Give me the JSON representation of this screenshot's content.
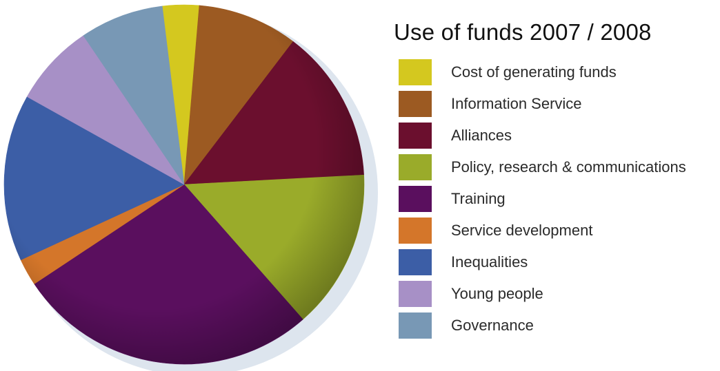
{
  "chart_data": {
    "type": "pie",
    "title": "Use of funds 2007 / 2008",
    "start_angle_deg": 263,
    "categories": [
      "Cost of generating funds",
      "Information Service",
      "Alliances",
      "Policy, research & communications",
      "Training",
      "Service development",
      "Inequalities",
      "Young people",
      "Governance"
    ],
    "values": [
      3.5,
      9.6,
      14.7,
      15.3,
      28.9,
      2.6,
      16.0,
      7.9,
      8.0
    ],
    "colors": [
      "#d4c81f",
      "#9c5a22",
      "#6b0f2e",
      "#9aab2a",
      "#5a0f5e",
      "#d4762a",
      "#3c5ea6",
      "#a790c6",
      "#7898b5"
    ],
    "legend_position": "right",
    "grid": false
  }
}
